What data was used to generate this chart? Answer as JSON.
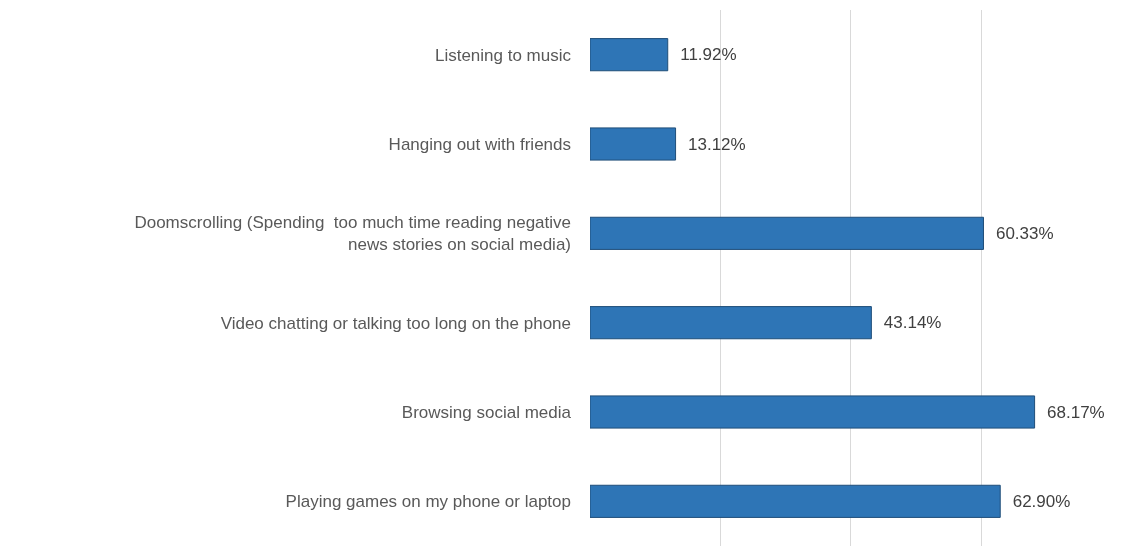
{
  "chart_data": {
    "type": "bar",
    "orientation": "horizontal",
    "categories": [
      "Listening to music",
      "Hanging out with friends",
      "Doomscrolling (Spending  too much time reading negative\nnews stories on social media)",
      "Video chatting or talking too long on the phone",
      "Browsing social media",
      "Playing games on my phone or laptop"
    ],
    "values": [
      11.92,
      13.12,
      60.33,
      43.14,
      68.17,
      62.9
    ],
    "value_labels": [
      "11.92%",
      "13.12%",
      "60.33%",
      "43.14%",
      "68.17%",
      "62.90%"
    ],
    "color": "#2e75b6",
    "grid": "x",
    "tick_labels": "y",
    "legend": false
  }
}
